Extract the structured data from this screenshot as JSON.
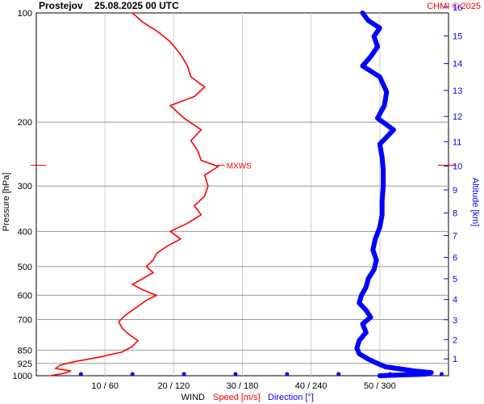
{
  "header": {
    "station": "Prostejov",
    "datetime": "25.08.2025 00 UTC",
    "credit": "CHMI © 2025"
  },
  "chart_data": {
    "type": "line",
    "title": "Prostejov 25.08.2025 00 UTC",
    "ylabel_left": "Pressure [hPa]",
    "ylabel_right": "Altitude [km]",
    "xlabel_prefix": "WIND",
    "xlabel_speed": "Speed [m/s]",
    "xlabel_direction": "Direction [°]",
    "pressure_ticks": [
      100,
      200,
      300,
      400,
      500,
      600,
      700,
      850,
      925,
      1000
    ],
    "pressure_range": [
      100,
      1000
    ],
    "pressure_scale": "log",
    "altitude_ticks": [
      1,
      2,
      3,
      4,
      5,
      6,
      7,
      8,
      9,
      10,
      11,
      12,
      13,
      14,
      15,
      16
    ],
    "x_tick_labels": [
      "10 / 60",
      "20 / 120",
      "30 / 180",
      "40 / 240",
      "50 / 300"
    ],
    "speed_range": [
      0,
      60
    ],
    "direction_range": [
      0,
      360
    ],
    "grid": true,
    "annotation": {
      "text": "MXWS",
      "pressure": 263,
      "speed": 26.5
    },
    "series": [
      {
        "name": "Speed [m/s]",
        "color": "#ff0000",
        "points": [
          [
            1000,
            2.0
          ],
          [
            985,
            4.0
          ],
          [
            970,
            5.0
          ],
          [
            955,
            2.8
          ],
          [
            935,
            3.5
          ],
          [
            915,
            5.5
          ],
          [
            890,
            9.0
          ],
          [
            860,
            12.5
          ],
          [
            830,
            14.0
          ],
          [
            800,
            14.8
          ],
          [
            770,
            13.5
          ],
          [
            740,
            12.5
          ],
          [
            710,
            12.0
          ],
          [
            680,
            13.0
          ],
          [
            650,
            14.5
          ],
          [
            620,
            16.0
          ],
          [
            600,
            17.5
          ],
          [
            580,
            15.5
          ],
          [
            560,
            14.0
          ],
          [
            540,
            15.5
          ],
          [
            520,
            17.0
          ],
          [
            500,
            16.0
          ],
          [
            480,
            17.0
          ],
          [
            460,
            17.5
          ],
          [
            440,
            19.0
          ],
          [
            420,
            21.0
          ],
          [
            400,
            19.5
          ],
          [
            380,
            22.0
          ],
          [
            360,
            24.0
          ],
          [
            340,
            23.0
          ],
          [
            320,
            24.5
          ],
          [
            300,
            25.0
          ],
          [
            280,
            24.5
          ],
          [
            265,
            26.5
          ],
          [
            255,
            24.0
          ],
          [
            240,
            23.5
          ],
          [
            225,
            22.5
          ],
          [
            210,
            24.0
          ],
          [
            195,
            21.5
          ],
          [
            180,
            19.5
          ],
          [
            170,
            23.0
          ],
          [
            160,
            24.5
          ],
          [
            150,
            22.5
          ],
          [
            140,
            22.0
          ],
          [
            130,
            21.0
          ],
          [
            120,
            19.5
          ],
          [
            112,
            17.5
          ],
          [
            106,
            15.5
          ],
          [
            100,
            14.0
          ]
        ]
      },
      {
        "name": "Direction [°]",
        "color": "#0000ff",
        "points": [
          [
            1000,
            300
          ],
          [
            990,
            340
          ],
          [
            980,
            345
          ],
          [
            970,
            330
          ],
          [
            960,
            320
          ],
          [
            945,
            305
          ],
          [
            925,
            298
          ],
          [
            900,
            290
          ],
          [
            870,
            282
          ],
          [
            840,
            280
          ],
          [
            800,
            282
          ],
          [
            760,
            288
          ],
          [
            720,
            285
          ],
          [
            690,
            292
          ],
          [
            660,
            288
          ],
          [
            630,
            282
          ],
          [
            600,
            284
          ],
          [
            570,
            288
          ],
          [
            540,
            290
          ],
          [
            510,
            295
          ],
          [
            480,
            297
          ],
          [
            450,
            294
          ],
          [
            420,
            296
          ],
          [
            390,
            300
          ],
          [
            360,
            302
          ],
          [
            330,
            302
          ],
          [
            300,
            303
          ],
          [
            270,
            303
          ],
          [
            250,
            302
          ],
          [
            230,
            300
          ],
          [
            210,
            312
          ],
          [
            195,
            298
          ],
          [
            180,
            304
          ],
          [
            165,
            306
          ],
          [
            150,
            300
          ],
          [
            140,
            285
          ],
          [
            132,
            292
          ],
          [
            124,
            298
          ],
          [
            116,
            295
          ],
          [
            110,
            300
          ],
          [
            105,
            290
          ],
          [
            100,
            285
          ]
        ]
      }
    ],
    "wind_level_markers": 8
  }
}
